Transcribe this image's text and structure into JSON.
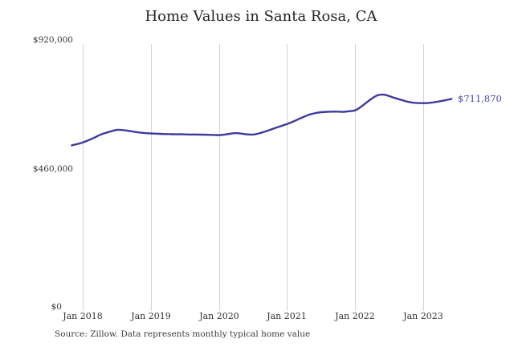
{
  "chart_data": {
    "type": "line",
    "title": "Home Values in Santa Rosa, CA",
    "xlabel": "",
    "ylabel": "",
    "ylim": [
      0,
      920000
    ],
    "y_tick_labels": [
      "$920,000",
      "$460,000",
      "$0"
    ],
    "x_tick_labels": [
      "Jan 2018",
      "Jan 2019",
      "Jan 2020",
      "Jan 2021",
      "Jan 2022",
      "Jan 2023"
    ],
    "grid": "vertical-only",
    "legend": "none",
    "end_label": "$711,870",
    "end_value": 711870,
    "line_color": "#3e3a9c",
    "end_label_color": "#4843ad",
    "gridline_color": "#d3d3d3",
    "series": [
      {
        "name": "Monthly typical home value",
        "frequency": "monthly",
        "months": [
          "2017-11",
          "2017-12",
          "2018-01",
          "2018-02",
          "2018-03",
          "2018-04",
          "2018-05",
          "2018-06",
          "2018-07",
          "2018-08",
          "2018-09",
          "2018-10",
          "2018-11",
          "2018-12",
          "2019-01",
          "2019-02",
          "2019-03",
          "2019-04",
          "2019-05",
          "2019-06",
          "2019-07",
          "2019-08",
          "2019-09",
          "2019-10",
          "2019-11",
          "2019-12",
          "2020-01",
          "2020-02",
          "2020-03",
          "2020-04",
          "2020-05",
          "2020-06",
          "2020-07",
          "2020-08",
          "2020-09",
          "2020-10",
          "2020-11",
          "2020-12",
          "2021-01",
          "2021-02",
          "2021-03",
          "2021-04",
          "2021-05",
          "2021-06",
          "2021-07",
          "2021-08",
          "2021-09",
          "2021-10",
          "2021-11",
          "2021-12",
          "2022-01",
          "2022-02",
          "2022-03",
          "2022-04",
          "2022-05",
          "2022-06",
          "2022-07",
          "2022-08",
          "2022-09",
          "2022-10",
          "2022-11",
          "2022-12",
          "2023-01",
          "2023-02",
          "2023-03",
          "2023-04",
          "2023-05",
          "2023-06"
        ],
        "values": [
          545000,
          550000,
          556000,
          564000,
          573000,
          583000,
          590000,
          596000,
          601000,
          600000,
          597000,
          594000,
          591000,
          589000,
          588000,
          587000,
          586000,
          585500,
          585000,
          585000,
          584500,
          584000,
          584000,
          583500,
          583000,
          582500,
          582000,
          584000,
          587000,
          589000,
          587000,
          584500,
          584000,
          588000,
          594000,
          601000,
          608000,
          615000,
          622000,
          630000,
          639000,
          648000,
          656000,
          661000,
          664000,
          665500,
          666000,
          666000,
          665500,
          667500,
          671000,
          683000,
          699000,
          714000,
          725000,
          727000,
          722000,
          715000,
          709000,
          703000,
          699000,
          697000,
          696500,
          697500,
          700000,
          703500,
          707500,
          711870
        ]
      }
    ]
  },
  "footer": {
    "source": "Source: Zillow. Data represents monthly typical home value"
  }
}
